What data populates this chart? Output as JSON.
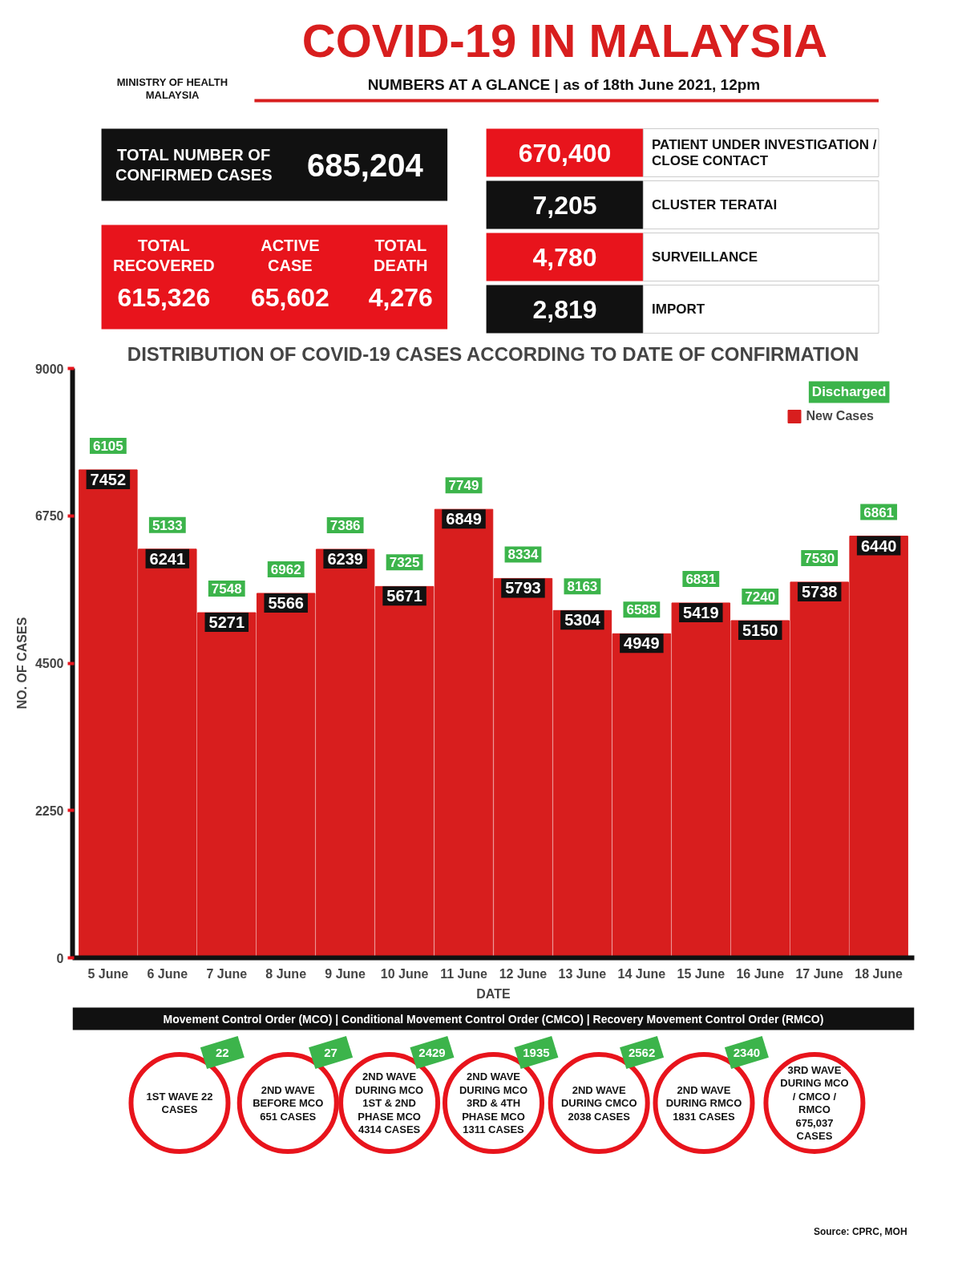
{
  "chart_data": [
    {
      "type": "other",
      "title": "COVID-19 IN MALAYSIA",
      "subtitle": "NUMBERS AT A GLANCE | as of 18th June 2021, 12pm",
      "annotations": [
        "MINISTRY OF HEALTH MALAYSIA",
        "TOTAL NUMBER OF CONFIRMED CASES",
        "685,204",
        "TOTAL RECOVERED",
        "615,326",
        "ACTIVE CASE",
        "65,602",
        "TOTAL DEATH",
        "4,276",
        "670,400",
        "PATIENT UNDER INVESTIGATION / CLOSE CONTACT",
        "7,205",
        "CLUSTER TERATAI",
        "4,780",
        "SURVEILLANCE",
        "2,819",
        "IMPORT"
      ]
    },
    {
      "type": "bar",
      "title": "DISTRIBUTION OF COVID-19 CASES ACCORDING TO DATE OF CONFIRMATION",
      "xlabel": "DATE",
      "ylabel": "NO. OF CASES",
      "categories": [
        "5 June",
        "6 June",
        "7 June",
        "8 June",
        "9 June",
        "10 June",
        "11 June",
        "12 June",
        "13 June",
        "14 June",
        "15 June",
        "16 June",
        "17 June",
        "18 June"
      ],
      "series": [
        {
          "name": "New Cases",
          "color": "#d81e1e",
          "values": [
            7452,
            6241,
            5271,
            5566,
            6239,
            5671,
            6849,
            5793,
            5304,
            4949,
            5419,
            5150,
            5738,
            6440
          ]
        }
      ],
      "ylim": [
        0,
        9000
      ],
      "yticks": [
        0,
        2250,
        4500,
        6750,
        9000
      ],
      "data_labels": true,
      "legend": "top right",
      "annotations": [
        "Discharged",
        {
          "text": "6105",
          "x": "5 June",
          "y": 7452
        },
        {
          "text": "5133",
          "x": "6 June",
          "y": 6241
        },
        {
          "text": "7548",
          "x": "7 June",
          "y": 5271
        },
        {
          "text": "6962",
          "x": "8 June",
          "y": 5566
        },
        {
          "text": "7386",
          "x": "9 June",
          "y": 6239
        },
        {
          "text": "7325",
          "x": "10 June",
          "y": 5671
        },
        {
          "text": "7749",
          "x": "11 June",
          "y": 6849
        },
        {
          "text": "8334",
          "x": "12 June",
          "y": 5793
        },
        {
          "text": "8163",
          "x": "13 June",
          "y": 5304
        },
        {
          "text": "6588",
          "x": "14 June",
          "y": 4949
        },
        {
          "text": "6831",
          "x": "15 June",
          "y": 5419
        },
        {
          "text": "7240",
          "x": "16 June",
          "y": 5150
        },
        {
          "text": "7530",
          "x": "17 June",
          "y": 5738
        },
        {
          "text": "6861",
          "x": "18 June",
          "y": 6440
        }
      ]
    },
    {
      "type": "other",
      "annotations": [
        "Movement Control Order (MCO) | Conditional Movement Control Order (CMCO) | Recovery Movement Control Order (RMCO)",
        "1ST WAVE 22 CASES",
        "2ND WAVE BEFORE MCO 651 CASES",
        "2ND WAVE DURING MCO 1ST & 2ND PHASE MCO 4314 CASES",
        "2ND WAVE DURING MCO 3RD & 4TH PHASE MCO 1311 CASES",
        "2ND WAVE DURING CMCO 2038 CASES",
        "2ND WAVE DURING RMCO 1831 CASES",
        "3RD WAVE DURING MCO / CMCO / RMCO 675,037 CASES",
        "22",
        "27",
        "2429",
        "1935",
        "2562",
        "2340",
        "Source: CPRC, MOH"
      ]
    }
  ]
}
